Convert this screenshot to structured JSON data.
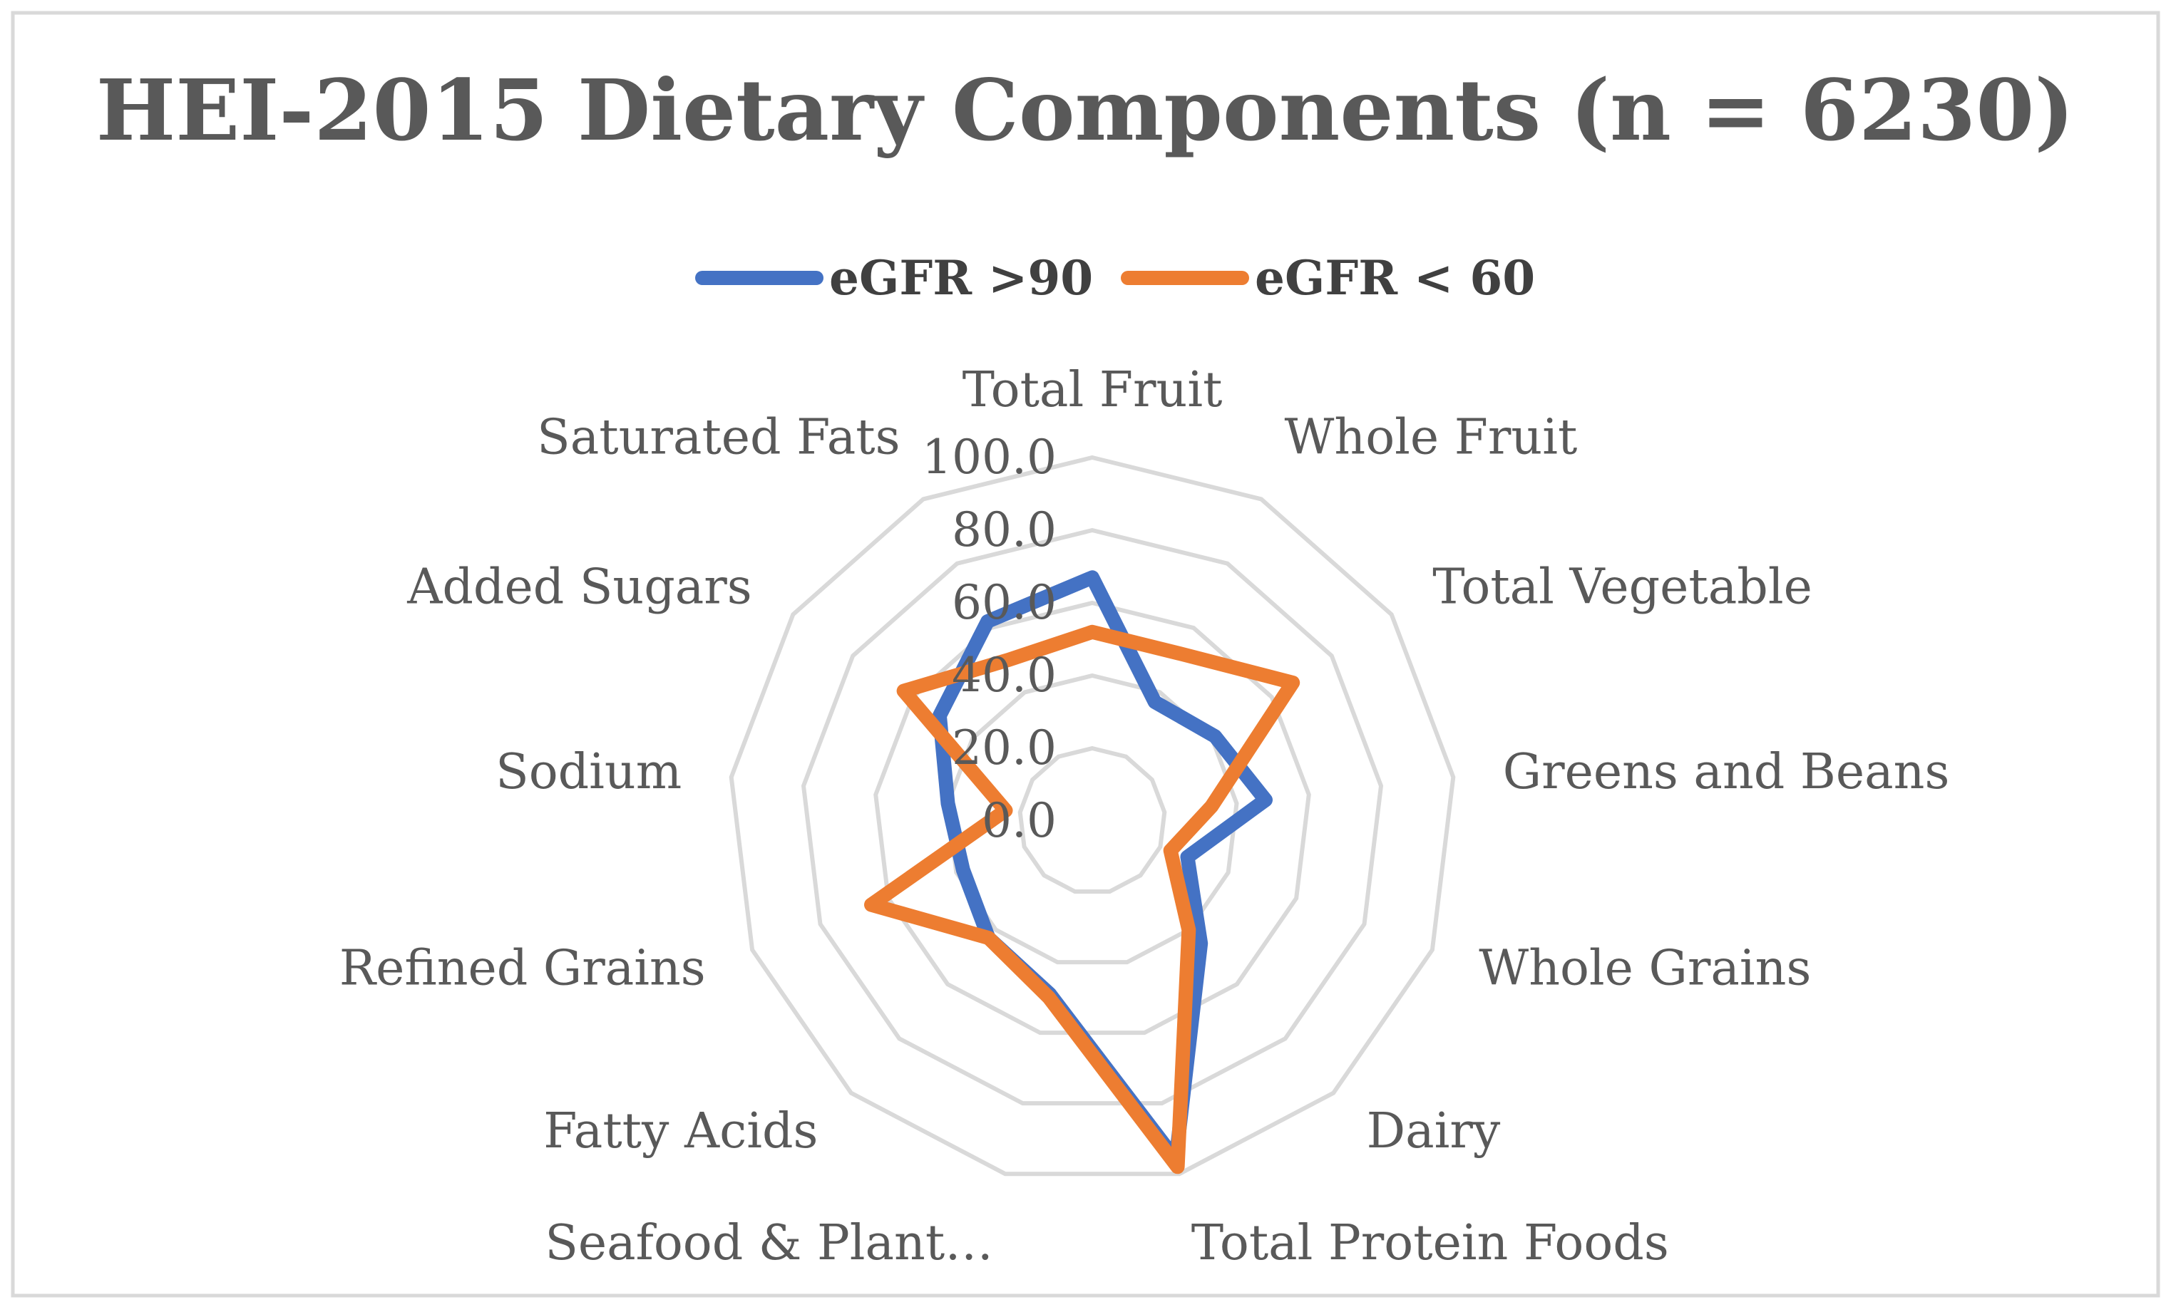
{
  "chart_data": {
    "type": "radar",
    "title": "HEI-2015 Dietary Components (n = 6230)",
    "categories": [
      "Total Fruit",
      "Whole Fruit",
      "Total Vegetable",
      "Greens and Beans",
      "Whole Grains",
      "Dairy",
      "Total Protein Foods",
      "Seafood & Plant…",
      "Fatty Acids",
      "Refined Grains",
      "Sodium",
      "Added Sugars",
      "Saturated Fats"
    ],
    "series": [
      {
        "name": "eGFR >90",
        "color": "#4472C4",
        "values": [
          67,
          37,
          41,
          48,
          28,
          45,
          96,
          49,
          43,
          38,
          40,
          51,
          62
        ]
      },
      {
        "name": "eGFR < 60",
        "color": "#ED7D31",
        "values": [
          52,
          52,
          67,
          33,
          23,
          40,
          98,
          50,
          43,
          65,
          24,
          63,
          50
        ]
      }
    ],
    "rlim": [
      0,
      100
    ],
    "rticks": [
      "0.0",
      "20.0",
      "40.0",
      "60.0",
      "80.0",
      "100.0"
    ],
    "grid": true,
    "gridline_color": "#D9D9D9",
    "legend_position": "top"
  }
}
